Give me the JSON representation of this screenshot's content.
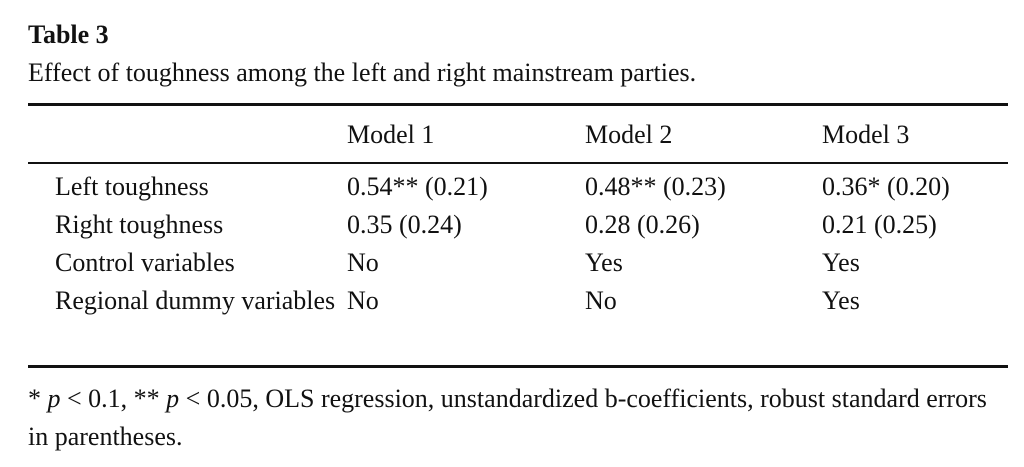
{
  "table_title": "Table 3",
  "caption": "Effect of toughness among the left and right mainstream parties.",
  "table": {
    "headers": [
      "Model 1",
      "Model 2",
      "Model 3"
    ],
    "rows": [
      {
        "label": "Left toughness",
        "cells": [
          "0.54** (0.21)",
          "0.48** (0.23)",
          "0.36* (0.20)"
        ]
      },
      {
        "label": "Right toughness",
        "cells": [
          "0.35 (0.24)",
          "0.28 (0.26)",
          "0.21 (0.25)"
        ]
      },
      {
        "label": "Control variables",
        "cells": [
          "No",
          "Yes",
          "Yes"
        ]
      },
      {
        "label": "Regional dummy variables",
        "cells": [
          "No",
          "No",
          "Yes"
        ]
      }
    ]
  },
  "footnote": [
    "* ",
    "p",
    " < 0.1, ** ",
    "p",
    " < 0.05, OLS regression, unstandardized b-coefficients, robust standard errors in parentheses."
  ]
}
